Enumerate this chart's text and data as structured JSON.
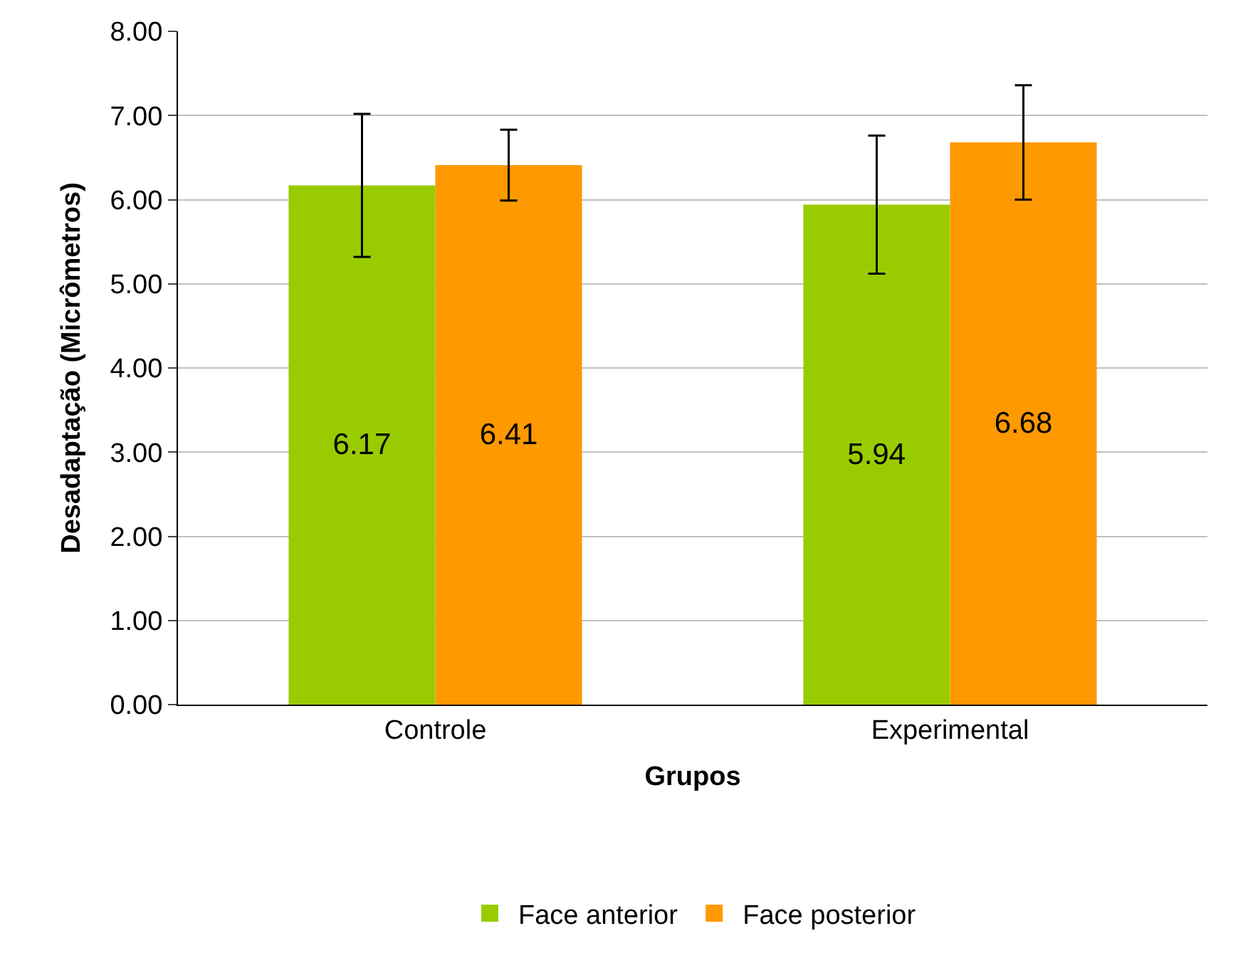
{
  "chart_data": {
    "type": "bar",
    "xlabel": "Grupos",
    "ylabel": "Desadaptação (Micrômetros)",
    "categories": [
      "Controle",
      "Experimental"
    ],
    "series": [
      {
        "name": "Face anterior",
        "color": "#99cc00",
        "values": [
          6.17,
          5.94
        ],
        "errors": [
          0.85,
          0.82
        ]
      },
      {
        "name": "Face posterior",
        "color": "#ff9900",
        "values": [
          6.41,
          6.68
        ],
        "errors": [
          0.42,
          0.68
        ]
      }
    ],
    "ylim": [
      0,
      8
    ],
    "yticks": [
      {
        "value": 0,
        "label": "0.00"
      },
      {
        "value": 1,
        "label": "1.00"
      },
      {
        "value": 2,
        "label": "2.00"
      },
      {
        "value": 3,
        "label": "3.00"
      },
      {
        "value": 4,
        "label": "4.00"
      },
      {
        "value": 5,
        "label": "5.00"
      },
      {
        "value": 6,
        "label": "6.00"
      },
      {
        "value": 7,
        "label": "7.00"
      },
      {
        "value": 8,
        "label": "8.00"
      }
    ],
    "grid": "y",
    "legend": "bottom",
    "data_labels": true
  }
}
